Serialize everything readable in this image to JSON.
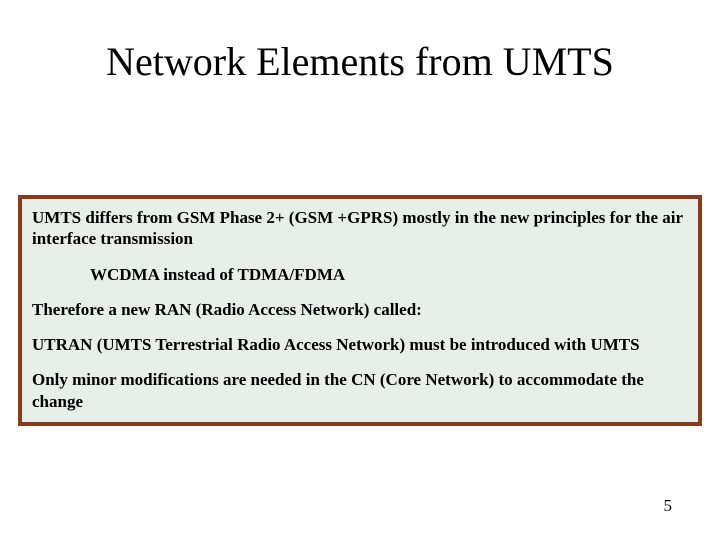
{
  "title": "Network Elements from UMTS",
  "box": {
    "border_color": "#8b3a1a",
    "background_color": "#e6f0e8",
    "paragraphs": [
      {
        "text": "UMTS differs from GSM Phase 2+ (GSM +GPRS) mostly in the new principles for the air interface transmission",
        "indent": false
      },
      {
        "text": "WCDMA instead of TDMA/FDMA",
        "indent": true
      },
      {
        "text": "Therefore a new RAN (Radio Access Network) called:",
        "indent": false
      },
      {
        "text": "UTRAN (UMTS Terrestrial Radio Access Network) must be introduced with UMTS",
        "indent": false
      },
      {
        "text": "Only minor modifications are needed in the CN (Core Network) to accommodate the change",
        "indent": false
      }
    ]
  },
  "page_number": "5"
}
